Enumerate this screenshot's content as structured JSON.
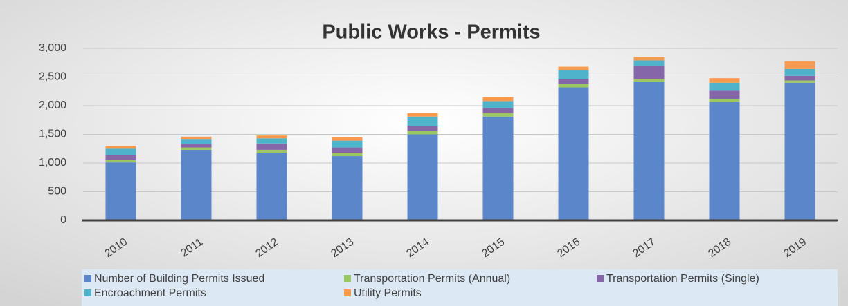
{
  "chart_data": {
    "type": "bar",
    "stacked": true,
    "title": "Public Works - Permits",
    "categories": [
      "2010",
      "2011",
      "2012",
      "2013",
      "2014",
      "2015",
      "2016",
      "2017",
      "2018",
      "2019"
    ],
    "series": [
      {
        "name": "Number of Building Permits Issued",
        "color": "#5b86c9",
        "values": [
          1010,
          1230,
          1180,
          1120,
          1500,
          1810,
          2320,
          2410,
          2060,
          2400
        ]
      },
      {
        "name": "Transportation Permits (Annual)",
        "color": "#9bc760",
        "values": [
          50,
          40,
          50,
          50,
          60,
          60,
          60,
          60,
          60,
          40
        ]
      },
      {
        "name": "Transportation Permits (Single)",
        "color": "#8566a8",
        "values": [
          80,
          60,
          110,
          100,
          90,
          90,
          90,
          220,
          140,
          80
        ]
      },
      {
        "name": "Encroachment Permits",
        "color": "#4fb3cc",
        "values": [
          120,
          90,
          90,
          120,
          160,
          120,
          150,
          100,
          140,
          120
        ]
      },
      {
        "name": "Utility Permits",
        "color": "#f79a4e",
        "values": [
          40,
          40,
          50,
          60,
          60,
          70,
          60,
          60,
          80,
          130
        ]
      }
    ],
    "ylim": [
      0,
      3000
    ],
    "yticks": [
      0,
      500,
      {
        "value": 1000,
        "label": "1,000"
      },
      {
        "value": 1500,
        "label": "1,500"
      },
      {
        "value": 2000,
        "label": "2,000"
      },
      {
        "value": 2500,
        "label": "2,500"
      },
      {
        "value": 3000,
        "label": "3,000"
      }
    ],
    "grid": true,
    "legend": "bottom"
  }
}
